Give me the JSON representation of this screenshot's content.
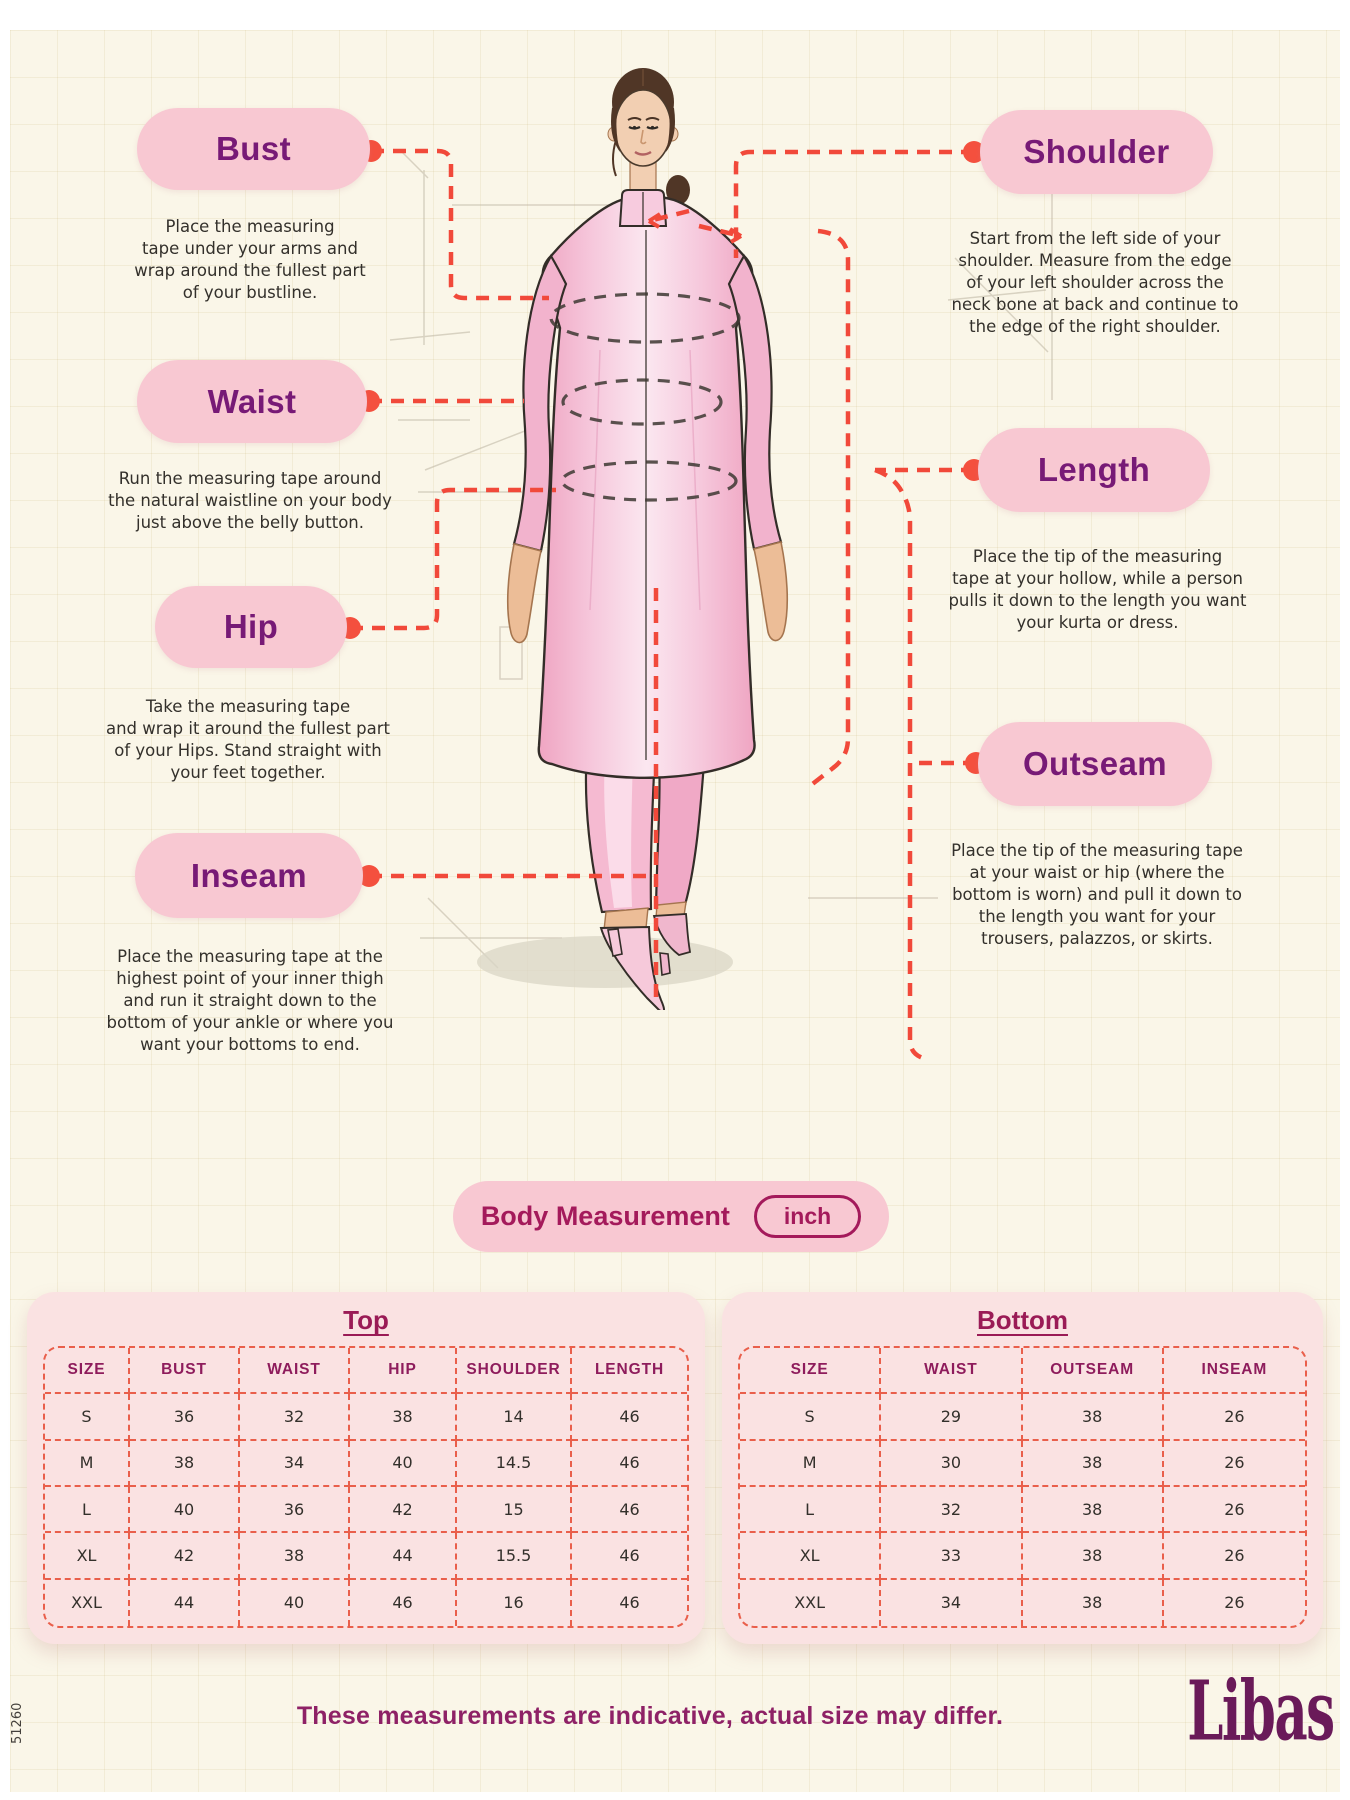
{
  "colors": {
    "background": "#FAF6E8",
    "pill_pink": "#F8C8D2",
    "label_purple": "#771A76",
    "connector_red": "#F1493A",
    "table_card_pink": "#FAE2E2",
    "table_border_red": "#E95F4B",
    "table_header_magenta": "#8E1C5C",
    "unit_magenta": "#A41A5B",
    "footer_magenta": "#8E2166",
    "brand_purple": "#6A1A59",
    "body_text": "#33302B"
  },
  "callouts": {
    "left": [
      {
        "label": "Bust",
        "description": "Place the measuring\ntape under your arms and\nwrap around the fullest part\nof your bustline."
      },
      {
        "label": "Waist",
        "description": "Run the measuring tape around\nthe natural waistline on your body\njust above the belly button."
      },
      {
        "label": "Hip",
        "description": "Take the measuring tape\nand wrap it around the fullest part\nof your Hips. Stand straight with\nyour feet together."
      },
      {
        "label": "Inseam",
        "description": "Place the measuring tape at the\nhighest point of your inner thigh\nand run it straight down to the\nbottom of your ankle or where you\nwant your bottoms to end."
      }
    ],
    "right": [
      {
        "label": "Shoulder",
        "description": "Start from the left side of your\nshoulder. Measure from the edge\nof your left shoulder across the\nneck bone at back and continue to\nthe edge of the right shoulder."
      },
      {
        "label": "Length",
        "description": "Place the tip of the measuring\ntape at your hollow, while a person\npulls it down to the length you want\nyour kurta or dress."
      },
      {
        "label": "Outseam",
        "description": "Place the tip of the measuring tape\nat your waist or hip (where the\nbottom is worn) and pull it down to\nthe length you want for your\ntrousers, palazzos, or skirts."
      }
    ]
  },
  "unit_bar": {
    "title": "Body Measurement",
    "unit": "inch"
  },
  "size_tables": [
    {
      "title": "Top",
      "headers": [
        "SIZE",
        "BUST",
        "WAIST",
        "HIP",
        "SHOULDER",
        "LENGTH"
      ],
      "rows": [
        [
          "S",
          "36",
          "32",
          "38",
          "14",
          "46"
        ],
        [
          "M",
          "38",
          "34",
          "40",
          "14.5",
          "46"
        ],
        [
          "L",
          "40",
          "36",
          "42",
          "15",
          "46"
        ],
        [
          "XL",
          "42",
          "38",
          "44",
          "15.5",
          "46"
        ],
        [
          "XXL",
          "44",
          "40",
          "46",
          "16",
          "46"
        ]
      ]
    },
    {
      "title": "Bottom",
      "headers": [
        "SIZE",
        "WAIST",
        "OUTSEAM",
        "INSEAM"
      ],
      "rows": [
        [
          "S",
          "29",
          "38",
          "26"
        ],
        [
          "M",
          "30",
          "38",
          "26"
        ],
        [
          "L",
          "32",
          "38",
          "26"
        ],
        [
          "XL",
          "33",
          "38",
          "26"
        ],
        [
          "XXL",
          "34",
          "38",
          "26"
        ]
      ]
    }
  ],
  "footer": {
    "note": "These measurements are indicative, actual size may differ.",
    "brand": "Libas",
    "code": "51260"
  }
}
